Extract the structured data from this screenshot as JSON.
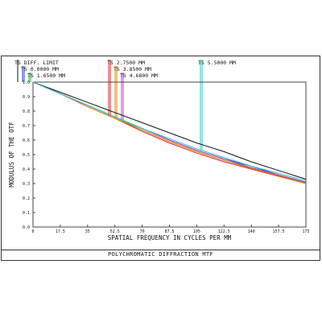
{
  "chart_data": {
    "type": "line",
    "caption": "POLYCHROMATIC DIFFRACTION MTF",
    "xlabel": "SPATIAL FREQUENCY IN CYCLES PER MM",
    "ylabel": "MODULUS OF THE OTF",
    "xlim": [
      0,
      175
    ],
    "ylim": [
      0,
      1.0
    ],
    "x_ticks": [
      "0",
      "17.5",
      "35",
      "52.5",
      "70",
      "87.5",
      "105",
      "122.5",
      "140",
      "157.5",
      "175"
    ],
    "y_ticks": [
      "0.0",
      "0.1",
      "0.2",
      "0.3",
      "0.4",
      "0.5",
      "0.6",
      "0.7",
      "0.8",
      "0.9",
      "1.0"
    ],
    "legend": [
      {
        "label": "TS DIFF. LIMIT",
        "color": "#111111",
        "field_position": 0
      },
      {
        "label": "TS 0.0000 MM",
        "color": "#2233cc",
        "field_position": 0
      },
      {
        "label": "TS 1.6500 MM",
        "color": "#22aa33",
        "field_position": 1.65
      },
      {
        "label": "TS 2.7500 MM",
        "color": "#dd2222",
        "field_position": 2.75
      },
      {
        "label": "TS 3.8500 MM",
        "color": "#dd8800",
        "field_position": 3.85
      },
      {
        "label": "TS 4.6800 MM",
        "color": "#cc33cc",
        "field_position": 4.68
      },
      {
        "label": "TS 5.5000 MM",
        "color": "#22cccc",
        "field_position": 5.5
      }
    ],
    "series": [
      {
        "name": "TS DIFF. LIMIT",
        "color": "#111111",
        "x": [
          0,
          17.5,
          35,
          52.5,
          70,
          87.5,
          105,
          122.5,
          140,
          157.5,
          175
        ],
        "y": [
          1.0,
          0.93,
          0.86,
          0.79,
          0.72,
          0.65,
          0.58,
          0.52,
          0.45,
          0.39,
          0.33
        ]
      },
      {
        "name": "TS 0.0000 MM",
        "color": "#2233cc",
        "x": [
          0,
          17.5,
          35,
          52.5,
          70,
          87.5,
          105,
          122.5,
          140,
          157.5,
          175
        ],
        "y": [
          1.0,
          0.92,
          0.84,
          0.76,
          0.68,
          0.6,
          0.53,
          0.47,
          0.42,
          0.36,
          0.31
        ]
      },
      {
        "name": "TS 1.6500 MM",
        "color": "#22aa33",
        "x": [
          0,
          17.5,
          35,
          52.5,
          70,
          87.5,
          105,
          122.5,
          140,
          157.5,
          175
        ],
        "y": [
          1.0,
          0.92,
          0.84,
          0.76,
          0.67,
          0.59,
          0.52,
          0.46,
          0.41,
          0.355,
          0.305
        ]
      },
      {
        "name": "TS 2.7500 MM",
        "color": "#dd2222",
        "x": [
          0,
          17.5,
          35,
          52.5,
          70,
          87.5,
          105,
          122.5,
          140,
          157.5,
          175
        ],
        "y": [
          1.0,
          0.92,
          0.83,
          0.75,
          0.66,
          0.58,
          0.51,
          0.45,
          0.4,
          0.35,
          0.3
        ]
      },
      {
        "name": "TS 3.8500 MM",
        "color": "#dd8800",
        "x": [
          0,
          17.5,
          35,
          52.5,
          70,
          87.5,
          105,
          122.5,
          140,
          157.5,
          175
        ],
        "y": [
          1.0,
          0.92,
          0.83,
          0.75,
          0.67,
          0.59,
          0.52,
          0.46,
          0.405,
          0.355,
          0.3
        ]
      },
      {
        "name": "TS 4.6800 MM",
        "color": "#cc33cc",
        "x": [
          0,
          17.5,
          35,
          52.5,
          70,
          87.5,
          105,
          122.5,
          140,
          157.5,
          175
        ],
        "y": [
          1.0,
          0.92,
          0.84,
          0.76,
          0.68,
          0.6,
          0.53,
          0.47,
          0.41,
          0.36,
          0.31
        ]
      },
      {
        "name": "TS 5.5000 MM",
        "color": "#22cccc",
        "x": [
          0,
          17.5,
          35,
          52.5,
          70,
          87.5,
          105,
          122.5,
          140,
          157.5,
          175
        ],
        "y": [
          1.0,
          0.92,
          0.84,
          0.76,
          0.68,
          0.61,
          0.54,
          0.48,
          0.42,
          0.37,
          0.32
        ]
      }
    ],
    "grid": false
  }
}
